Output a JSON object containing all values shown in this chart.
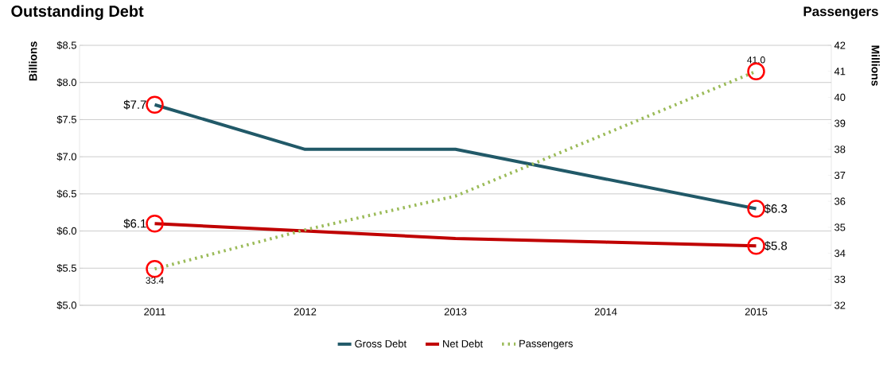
{
  "chart_data": {
    "type": "line",
    "title": "Outstanding Debt",
    "ylabel": "Billions",
    "y2label": "Millions",
    "annotations": [
      "Passengers"
    ],
    "categories": [
      "2011",
      "2012",
      "2013",
      "2014",
      "2015"
    ],
    "series": [
      {
        "name": "Gross Debt",
        "color": "#215968",
        "values": [
          7.7,
          7.1,
          7.1,
          6.7,
          6.3
        ],
        "value_labels": [
          "$7.7",
          null,
          null,
          null,
          "$6.3"
        ]
      },
      {
        "name": "Net Debt",
        "color": "#c00000",
        "values": [
          6.1,
          6.0,
          5.9,
          5.85,
          5.8
        ],
        "value_labels": [
          "$6.1",
          null,
          null,
          null,
          "$5.8"
        ]
      },
      {
        "name": "Passengers",
        "color": "#9bbb59",
        "axis": "y2",
        "line_style": "dotted",
        "values": [
          33.4,
          34.9,
          36.2,
          38.6,
          41.0
        ],
        "value_labels": [
          "33.4",
          null,
          null,
          null,
          "41.0"
        ]
      }
    ],
    "ylim": [
      5.0,
      8.5
    ],
    "yticks": [
      {
        "value": 5.0,
        "label": "$5.0"
      },
      {
        "value": 5.5,
        "label": "$5.5"
      },
      {
        "value": 6.0,
        "label": "$6.0"
      },
      {
        "value": 6.5,
        "label": "$6.5"
      },
      {
        "value": 7.0,
        "label": "$7.0"
      },
      {
        "value": 7.5,
        "label": "$7.5"
      },
      {
        "value": 8.0,
        "label": "$8.0"
      },
      {
        "value": 8.5,
        "label": "$8.5"
      }
    ],
    "y2lim": [
      32,
      42
    ],
    "y2ticks": [
      32,
      33,
      34,
      35,
      36,
      37,
      38,
      39,
      40,
      41,
      42
    ],
    "grid": "y",
    "legend": "bottom",
    "line_style": "solid",
    "marker": "none"
  }
}
